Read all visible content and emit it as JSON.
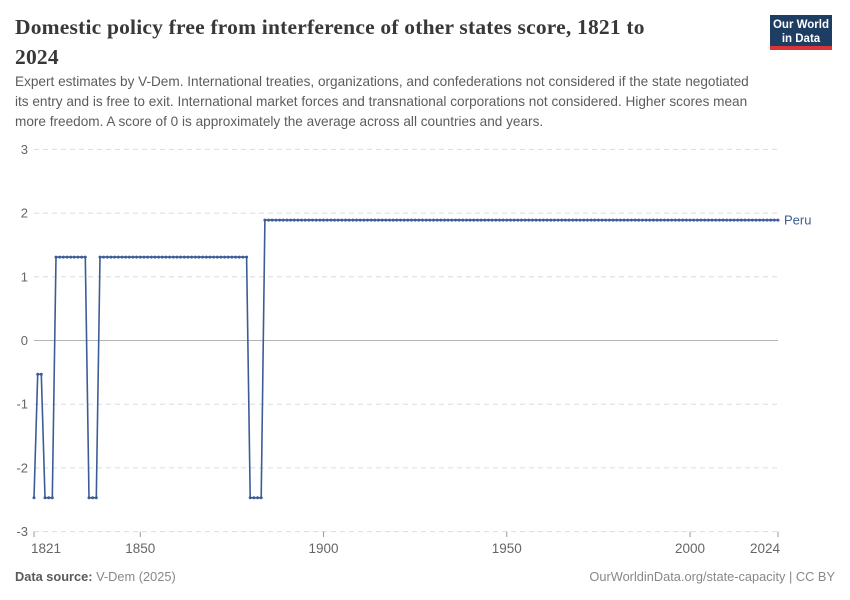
{
  "header": {
    "title_lines": [
      "Domestic policy free from interference of other states score, 1821 to",
      "2024"
    ],
    "subtitle_lines": [
      "Expert estimates by V-Dem. International treaties, organizations, and confederations not considered if the state negotiated",
      "its entry and is free to exit. International market forces and transnational corporations not considered. Higher scores mean",
      "more freedom. A score of 0 is approximately the average across all countries and years."
    ]
  },
  "logo": {
    "line1": "Our World",
    "line2": "in Data",
    "bg_color": "#1d3d63",
    "bar_color": "#dc3434"
  },
  "footer": {
    "source_label": "Data source:",
    "source_value": " V-Dem (2025)",
    "right_text": "OurWorldinData.org/state-capacity | CC BY"
  },
  "chart_data": {
    "type": "line",
    "title": "Domestic policy free from interference of other states score, 1821 to 2024",
    "x_range": [
      1821,
      2024
    ],
    "y_range": [
      -3,
      3
    ],
    "x_ticks": [
      1821,
      1850,
      1900,
      1950,
      2000,
      2024
    ],
    "y_ticks": [
      3,
      2,
      1,
      0,
      -1,
      -2,
      -3
    ],
    "grid": "dashed-horizontal",
    "legend": "end-of-line-label",
    "colors": {
      "line": "#3d5c97",
      "gridline": "#dcdcdc",
      "zero_line": "#b3b3b3",
      "tick": "#999999",
      "axis_text": "#666666"
    },
    "series": [
      {
        "name": "Peru",
        "color": "#3d5c97",
        "segments": [
          {
            "from": 1821,
            "to": 1821,
            "value": -2.47
          },
          {
            "from": 1822,
            "to": 1823,
            "value": -0.53
          },
          {
            "from": 1824,
            "to": 1826,
            "value": -2.47
          },
          {
            "from": 1827,
            "to": 1835,
            "value": 1.31
          },
          {
            "from": 1836,
            "to": 1838,
            "value": -2.47
          },
          {
            "from": 1839,
            "to": 1879,
            "value": 1.31
          },
          {
            "from": 1880,
            "to": 1883,
            "value": -2.47
          },
          {
            "from": 1884,
            "to": 2024,
            "value": 1.89
          }
        ]
      }
    ]
  }
}
